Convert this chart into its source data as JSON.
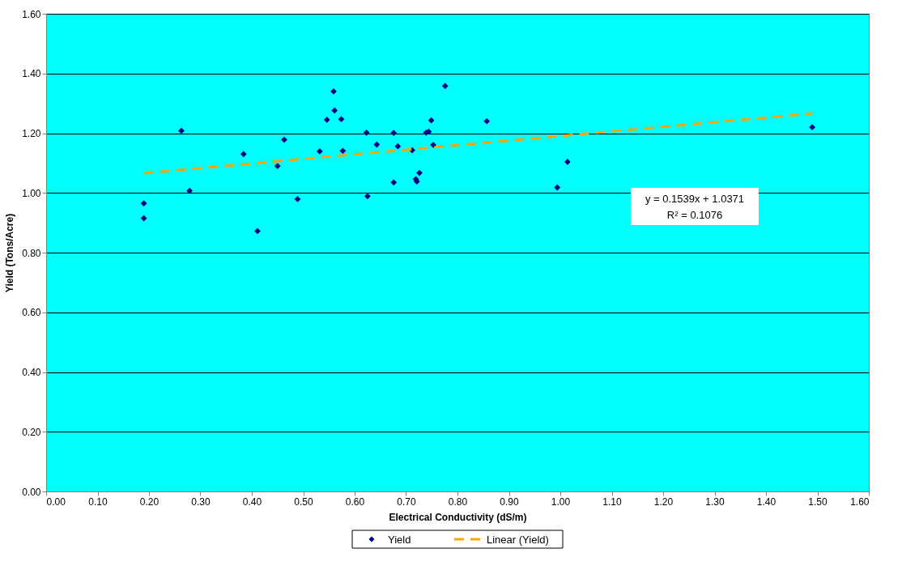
{
  "chart_data": {
    "type": "scatter",
    "xlabel": "Electrical Conductivity (dS/m)",
    "ylabel": "Yield (Tons/Acre)",
    "xlim": [
      0,
      1.6
    ],
    "ylim": [
      0,
      1.6
    ],
    "xticks": [
      {
        "value": 0,
        "label": "0.00"
      },
      {
        "value": 0.1,
        "label": "0.10"
      },
      {
        "value": 0.2,
        "label": "0.20"
      },
      {
        "value": 0.3,
        "label": "0.30"
      },
      {
        "value": 0.4,
        "label": "0.40"
      },
      {
        "value": 0.5,
        "label": "0.50"
      },
      {
        "value": 0.6,
        "label": "0.60"
      },
      {
        "value": 0.7,
        "label": "0.70"
      },
      {
        "value": 0.8,
        "label": "0.80"
      },
      {
        "value": 0.9,
        "label": "0.90"
      },
      {
        "value": 1,
        "label": "1.00"
      },
      {
        "value": 1.1,
        "label": "1.10"
      },
      {
        "value": 1.2,
        "label": "1.20"
      },
      {
        "value": 1.3,
        "label": "1.30"
      },
      {
        "value": 1.4,
        "label": "1.40"
      },
      {
        "value": 1.5,
        "label": "1.50"
      },
      {
        "value": 1.6,
        "label": "1.60"
      }
    ],
    "yticks": [
      {
        "value": 0,
        "label": "0.00"
      },
      {
        "value": 0.2,
        "label": "0.20"
      },
      {
        "value": 0.4,
        "label": "0.40"
      },
      {
        "value": 0.6,
        "label": "0.60"
      },
      {
        "value": 0.8,
        "label": "0.80"
      },
      {
        "value": 1,
        "label": "1.00"
      },
      {
        "value": 1.2,
        "label": "1.20"
      },
      {
        "value": 1.4,
        "label": "1.40"
      },
      {
        "value": 1.6,
        "label": "1.60"
      }
    ],
    "grid": "y",
    "legend": "bottom",
    "series": [
      {
        "name": "Yield",
        "marker": "diamond",
        "color": "#000080",
        "x": [
          0.19,
          0.19,
          0.263,
          0.279,
          0.384,
          0.411,
          0.45,
          0.463,
          0.489,
          0.532,
          0.546,
          0.559,
          0.561,
          0.574,
          0.577,
          0.623,
          0.625,
          0.643,
          0.676,
          0.676,
          0.684,
          0.712,
          0.719,
          0.721,
          0.726,
          0.739,
          0.744,
          0.749,
          0.753,
          0.776,
          0.857,
          0.994,
          1.014,
          1.49
        ],
        "values": [
          0.965,
          0.915,
          1.208,
          1.007,
          1.13,
          0.872,
          1.09,
          1.178,
          0.979,
          1.139,
          1.245,
          1.34,
          1.276,
          1.247,
          1.141,
          1.202,
          0.989,
          1.162,
          1.201,
          1.035,
          1.156,
          1.143,
          1.046,
          1.038,
          1.067,
          1.202,
          1.205,
          1.243,
          1.161,
          1.358,
          1.24,
          1.018,
          1.104,
          1.22
        ]
      },
      {
        "name": "Linear (Yield)",
        "type": "line",
        "color": "#ffa500",
        "line_style": "dashed",
        "x": [
          0.19,
          1.49
        ],
        "values": [
          1.066,
          1.266
        ]
      }
    ],
    "annotations": [
      "y = 0.1539x + 1.0371",
      "R² = 0.1076"
    ]
  }
}
